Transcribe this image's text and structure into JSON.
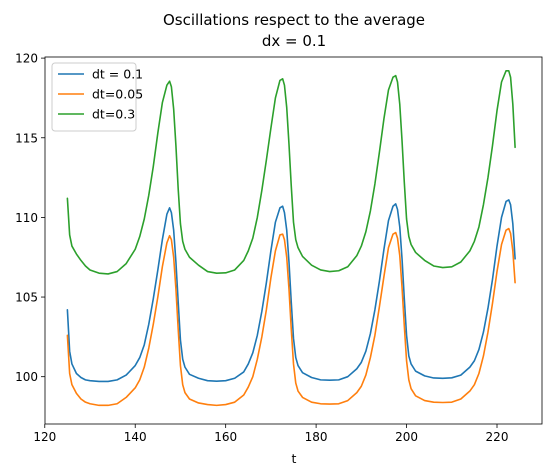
{
  "chart_data": {
    "type": "line",
    "title": "Oscillations respect to the average",
    "subtitle": "dx = 0.1",
    "xlabel": "t",
    "ylabel": "",
    "xlim": [
      120.05,
      229.95
    ],
    "ylim": [
      97.03,
      120.07
    ],
    "xticks": [
      120,
      140,
      160,
      180,
      200,
      220
    ],
    "yticks": [
      100,
      105,
      110,
      115,
      120
    ],
    "grid": false,
    "legend_position": "top-left",
    "series": [
      {
        "name": "dt = 0.1",
        "color": "#1f77b4",
        "x": [
          125,
          125.5,
          126,
          127,
          128,
          129,
          130,
          132,
          134,
          136,
          138,
          140,
          141,
          142,
          143,
          144,
          145,
          146,
          147,
          147.6,
          148,
          148.5,
          149,
          149.5,
          150,
          150.5,
          151,
          152,
          154,
          156,
          158,
          160,
          162,
          164,
          165,
          166,
          167,
          168,
          169,
          170,
          171,
          172,
          172.6,
          173,
          173.5,
          174,
          174.5,
          175,
          175.5,
          176,
          177,
          179,
          181,
          183,
          185,
          187,
          189,
          190,
          191,
          192,
          193,
          194,
          195,
          196,
          197,
          197.6,
          198,
          198.5,
          199,
          199.5,
          200,
          200.5,
          201,
          202,
          204,
          206,
          208,
          210,
          212,
          214,
          215,
          216,
          217,
          218,
          219,
          220,
          221,
          222,
          222.6,
          223,
          223.5,
          224
        ],
        "y": [
          104.2,
          101.6,
          100.8,
          100.2,
          99.95,
          99.8,
          99.75,
          99.7,
          99.7,
          99.8,
          100.1,
          100.7,
          101.2,
          102.0,
          103.3,
          104.9,
          106.7,
          108.6,
          110.2,
          110.6,
          110.3,
          109.2,
          107.2,
          104.7,
          102.3,
          101.1,
          100.6,
          100.15,
          99.9,
          99.75,
          99.72,
          99.75,
          99.9,
          100.3,
          100.8,
          101.5,
          102.6,
          104.1,
          105.9,
          107.9,
          109.7,
          110.6,
          110.7,
          110.3,
          109.2,
          107.2,
          104.7,
          102.4,
          101.2,
          100.7,
          100.25,
          99.95,
          99.8,
          99.78,
          99.8,
          100.0,
          100.5,
          100.9,
          101.6,
          102.7,
          104.2,
          106.0,
          108.0,
          109.8,
          110.7,
          110.85,
          110.5,
          109.4,
          107.4,
          104.9,
          102.6,
          101.3,
          100.8,
          100.35,
          100.05,
          99.92,
          99.9,
          99.93,
          100.1,
          100.6,
          101.0,
          101.7,
          102.8,
          104.3,
          106.1,
          108.2,
          110.0,
          111.0,
          111.1,
          110.8,
          109.6,
          107.4
        ]
      },
      {
        "name": "dt=0.05",
        "color": "#ff7f0e",
        "x": [
          125,
          125.5,
          126,
          127,
          128,
          129,
          130,
          132,
          134,
          136,
          138,
          140,
          141,
          142,
          143,
          144,
          145,
          146,
          147,
          147.6,
          148,
          148.5,
          149,
          149.5,
          150,
          150.5,
          151,
          152,
          154,
          156,
          158,
          160,
          162,
          164,
          165,
          166,
          167,
          168,
          169,
          170,
          171,
          172,
          172.6,
          173,
          173.5,
          174,
          174.5,
          175,
          175.5,
          176,
          177,
          179,
          181,
          183,
          185,
          187,
          189,
          190,
          191,
          192,
          193,
          194,
          195,
          196,
          197,
          197.6,
          198,
          198.5,
          199,
          199.5,
          200,
          200.5,
          201,
          202,
          204,
          206,
          208,
          210,
          212,
          214,
          215,
          216,
          217,
          218,
          219,
          220,
          221,
          222,
          222.6,
          223,
          223.5,
          224
        ],
        "y": [
          102.6,
          100.2,
          99.5,
          98.95,
          98.6,
          98.4,
          98.3,
          98.2,
          98.2,
          98.3,
          98.7,
          99.3,
          99.8,
          100.6,
          101.8,
          103.3,
          105.0,
          106.9,
          108.4,
          108.85,
          108.6,
          107.5,
          105.5,
          103.0,
          100.7,
          99.5,
          99.0,
          98.6,
          98.35,
          98.25,
          98.2,
          98.25,
          98.4,
          98.85,
          99.35,
          100.0,
          101.1,
          102.5,
          104.2,
          106.2,
          107.9,
          108.9,
          108.95,
          108.6,
          107.5,
          105.5,
          103.0,
          100.8,
          99.6,
          99.1,
          98.7,
          98.4,
          98.3,
          98.28,
          98.3,
          98.5,
          99.0,
          99.4,
          100.1,
          101.2,
          102.6,
          104.4,
          106.3,
          108.1,
          108.95,
          109.05,
          108.7,
          107.6,
          105.6,
          103.2,
          101.0,
          99.8,
          99.25,
          98.8,
          98.5,
          98.4,
          98.38,
          98.4,
          98.6,
          99.1,
          99.5,
          100.2,
          101.3,
          102.8,
          104.6,
          106.6,
          108.3,
          109.2,
          109.3,
          109.0,
          107.9,
          105.9
        ]
      },
      {
        "name": "dt=0.3",
        "color": "#2ca02c",
        "x": [
          125,
          125.5,
          126,
          127,
          128,
          129,
          130,
          132,
          134,
          136,
          138,
          140,
          141,
          142,
          143,
          144,
          145,
          146,
          147,
          147.6,
          148,
          148.5,
          149,
          149.5,
          150,
          150.5,
          151,
          152,
          154,
          156,
          158,
          160,
          162,
          164,
          165,
          166,
          167,
          168,
          169,
          170,
          171,
          172,
          172.6,
          173,
          173.5,
          174,
          174.5,
          175,
          175.5,
          176,
          177,
          179,
          181,
          183,
          185,
          187,
          189,
          190,
          191,
          192,
          193,
          194,
          195,
          196,
          197,
          197.6,
          198,
          198.5,
          199,
          199.5,
          200,
          200.5,
          201,
          202,
          204,
          206,
          208,
          210,
          212,
          214,
          215,
          216,
          217,
          218,
          219,
          220,
          221,
          222,
          222.6,
          223,
          223.5,
          224
        ],
        "y": [
          111.2,
          108.9,
          108.2,
          107.7,
          107.3,
          106.95,
          106.7,
          106.5,
          106.45,
          106.6,
          107.1,
          108.0,
          108.8,
          109.9,
          111.4,
          113.2,
          115.3,
          117.2,
          118.3,
          118.55,
          118.2,
          116.8,
          114.5,
          111.8,
          109.6,
          108.5,
          108.0,
          107.5,
          107.0,
          106.6,
          106.5,
          106.52,
          106.7,
          107.3,
          107.9,
          108.7,
          110.0,
          111.7,
          113.6,
          115.6,
          117.5,
          118.6,
          118.7,
          118.3,
          116.9,
          114.6,
          112.0,
          109.7,
          108.6,
          108.1,
          107.55,
          107.0,
          106.7,
          106.6,
          106.65,
          106.9,
          107.6,
          108.2,
          109.1,
          110.4,
          112.1,
          114.1,
          116.2,
          118.0,
          118.8,
          118.9,
          118.5,
          117.1,
          114.8,
          112.2,
          109.9,
          108.8,
          108.3,
          107.8,
          107.3,
          106.95,
          106.85,
          106.9,
          107.2,
          107.9,
          108.5,
          109.4,
          110.8,
          112.5,
          114.5,
          116.7,
          118.5,
          119.2,
          119.2,
          118.8,
          117.1,
          114.4
        ]
      }
    ]
  }
}
